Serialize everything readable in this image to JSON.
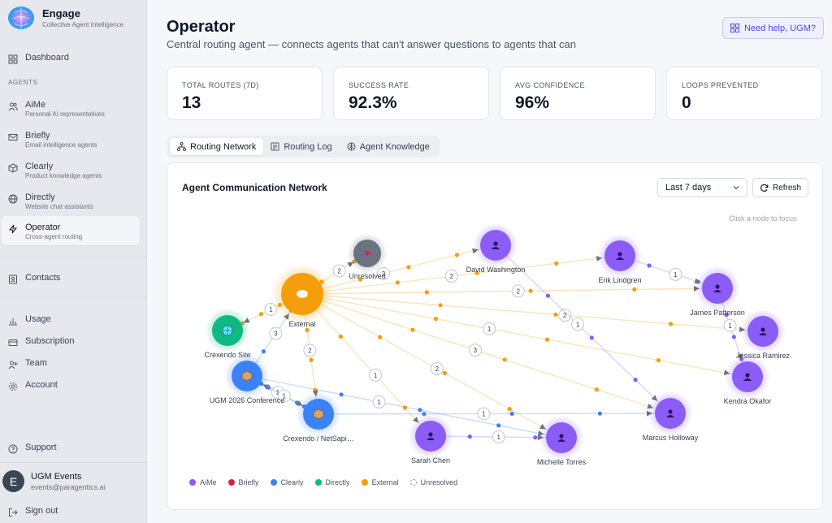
{
  "app": {
    "name": "Engage",
    "tagline": "Collective Agent Intelligence"
  },
  "sidebar": {
    "dashboard": "Dashboard",
    "section_label": "AGENTS",
    "agents": [
      {
        "label": "AiMe",
        "sub": "Personal AI representatives",
        "icon": "users-icon"
      },
      {
        "label": "Briefly",
        "sub": "Email intelligence agents",
        "icon": "mail-icon"
      },
      {
        "label": "Clearly",
        "sub": "Product knowledge agents",
        "icon": "box-icon"
      },
      {
        "label": "Directly",
        "sub": "Website chat assistants",
        "icon": "globe-icon"
      },
      {
        "label": "Operator",
        "sub": "Cross-agent routing",
        "icon": "zap-icon"
      }
    ],
    "contacts": "Contacts",
    "usage": "Usage",
    "subscription": "Subscription",
    "team": "Team",
    "account": "Account",
    "support": "Support",
    "user": {
      "initial": "E",
      "name": "UGM Events",
      "email": "events@paragentics.ai"
    },
    "sign_out": "Sign out"
  },
  "header": {
    "title": "Operator",
    "subtitle": "Central routing agent — connects agents that can't answer questions to agents that can",
    "help_label": "Need help, UGM?"
  },
  "stats": [
    {
      "label": "TOTAL ROUTES (7D)",
      "value": "13"
    },
    {
      "label": "SUCCESS RATE",
      "value": "92.3%"
    },
    {
      "label": "AVG CONFIDENCE",
      "value": "96%"
    },
    {
      "label": "LOOPS PREVENTED",
      "value": "0"
    }
  ],
  "tabs": [
    "Routing Network",
    "Routing Log",
    "Agent Knowledge"
  ],
  "panel": {
    "title": "Agent Communication Network",
    "range": "Last 7 days",
    "refresh": "Refresh",
    "hint": "Click a node to focus"
  },
  "colors": {
    "aime": "#8b5cf6",
    "briefly": "#e11d48",
    "clearly": "#3b82f6",
    "directly": "#10b981",
    "external": "#f59e0b",
    "unresolved": "#6b7280"
  },
  "network": {
    "nodes": [
      {
        "id": "ext",
        "label": "External",
        "type": "external"
      },
      {
        "id": "unres",
        "label": "Unresolved",
        "type": "unresolved"
      },
      {
        "id": "cs",
        "label": "Crexendo Site",
        "type": "directly"
      },
      {
        "id": "ugm",
        "label": "UGM 2026 Conference",
        "type": "clearly"
      },
      {
        "id": "cn",
        "label": "Crexendo / NetSapi…",
        "type": "clearly"
      },
      {
        "id": "dw",
        "label": "David Washington",
        "type": "aime"
      },
      {
        "id": "el",
        "label": "Erik Lindgren",
        "type": "aime"
      },
      {
        "id": "jp",
        "label": "James Patterson",
        "type": "aime"
      },
      {
        "id": "jr",
        "label": "Jessica Ramirez",
        "type": "aime"
      },
      {
        "id": "ko",
        "label": "Kendra Okafor",
        "type": "aime"
      },
      {
        "id": "mh",
        "label": "Marcus Holloway",
        "type": "aime"
      },
      {
        "id": "mt",
        "label": "Michelle Torres",
        "type": "aime"
      },
      {
        "id": "sc",
        "label": "Sarah Chen",
        "type": "aime"
      }
    ],
    "edges": [
      {
        "from": "ext",
        "to": "dw",
        "count": "2"
      },
      {
        "from": "ext",
        "to": "el",
        "count": "2"
      },
      {
        "from": "ext",
        "to": "jp",
        "count": "2"
      },
      {
        "from": "ext",
        "to": "jr",
        "count": "2"
      },
      {
        "from": "ext",
        "to": "ko",
        "count": "1"
      },
      {
        "from": "ext",
        "to": "mh",
        "count": "3"
      },
      {
        "from": "ext",
        "to": "mt",
        "count": "2"
      },
      {
        "from": "ext",
        "to": "sc",
        "count": "1"
      },
      {
        "from": "ext",
        "to": "cs",
        "count": "1"
      },
      {
        "from": "ext",
        "to": "cn",
        "count": "2"
      },
      {
        "from": "ugm",
        "to": "ext",
        "count": "3"
      },
      {
        "from": "cn",
        "to": "ugm",
        "count": "1"
      },
      {
        "from": "ugm",
        "to": "mt",
        "count": "1"
      },
      {
        "from": "cn",
        "to": "mh",
        "count": "1"
      },
      {
        "from": "sc",
        "to": "mt",
        "count": "1"
      },
      {
        "from": "el",
        "to": "jp",
        "count": "1"
      },
      {
        "from": "jp",
        "to": "ko",
        "count": "1"
      },
      {
        "from": "dw",
        "to": "mh",
        "count": "1"
      },
      {
        "from": "ugm",
        "to": "cn",
        "count": "1"
      },
      {
        "from": "ext",
        "to": "unres",
        "count": "2"
      }
    ]
  },
  "legend": [
    {
      "label": "AiMe",
      "color": "#8b5cf6"
    },
    {
      "label": "Briefly",
      "color": "#e11d48"
    },
    {
      "label": "Clearly",
      "color": "#3b82f6"
    },
    {
      "label": "Directly",
      "color": "#10b981"
    },
    {
      "label": "External",
      "color": "#f59e0b"
    },
    {
      "label": "Unresolved",
      "color": "dashed"
    }
  ]
}
